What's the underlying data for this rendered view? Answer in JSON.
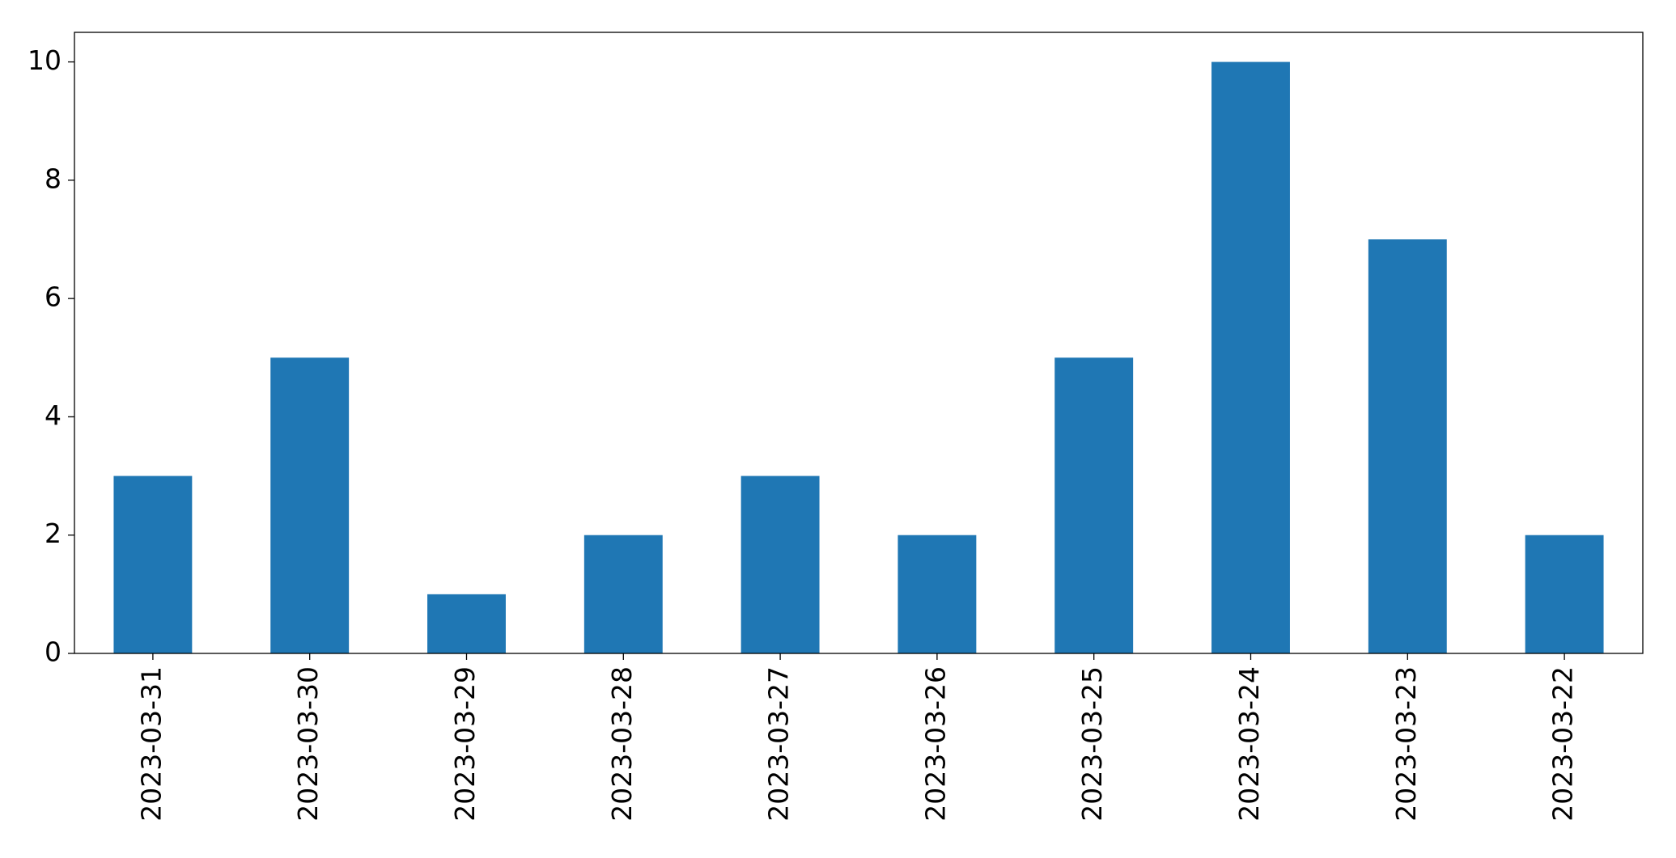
{
  "chart_data": {
    "type": "bar",
    "categories": [
      "2023-03-31",
      "2023-03-30",
      "2023-03-29",
      "2023-03-28",
      "2023-03-27",
      "2023-03-26",
      "2023-03-25",
      "2023-03-24",
      "2023-03-23",
      "2023-03-22"
    ],
    "values": [
      3,
      5,
      1,
      2,
      3,
      2,
      5,
      10,
      7,
      2
    ],
    "color": "#1f77b4",
    "ylim": [
      0,
      10.5
    ],
    "yticks": [
      0,
      2,
      4,
      6,
      8,
      10
    ],
    "grid": false
  }
}
